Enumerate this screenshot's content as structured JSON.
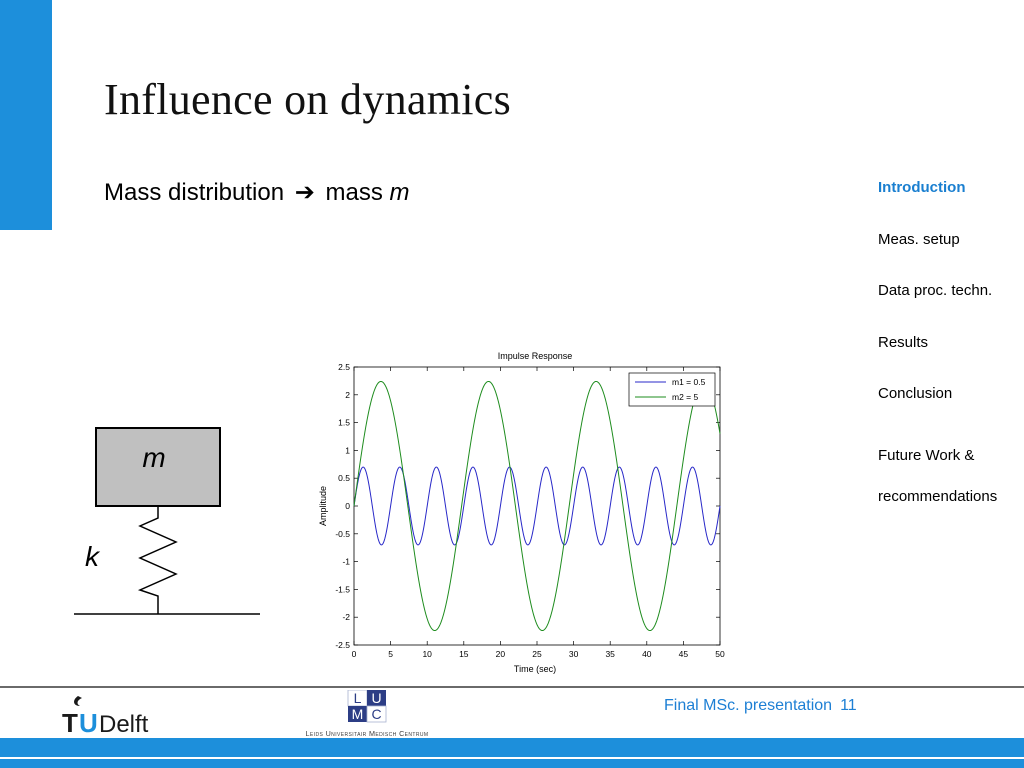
{
  "slide": {
    "title": "Influence on dynamics",
    "subtitle_text": "Mass distribution",
    "subtitle_arrow": "➔",
    "subtitle_mass": "mass",
    "subtitle_var": "m"
  },
  "nav": {
    "items": [
      {
        "label": "Introduction",
        "active": true
      },
      {
        "label": "Meas. setup",
        "active": false
      },
      {
        "label": "Data proc. techn.",
        "active": false
      },
      {
        "label": "Results",
        "active": false
      },
      {
        "label": "Conclusion",
        "active": false
      },
      {
        "label": "Future Work &",
        "label2": "recommendations",
        "active": false
      }
    ]
  },
  "diagram": {
    "mass_label": "m",
    "spring_label": "k"
  },
  "footer": {
    "presentation": "Final MSc. presentation",
    "page": "11",
    "tud_t": "T",
    "tud_u": "U",
    "tud_delft": "Delft",
    "lumc_l": "L",
    "lumc_u": "U",
    "lumc_m": "M",
    "lumc_c": "C",
    "lumc_name": "Leids Universitair Medisch Centrum"
  },
  "colors": {
    "accent": "#1d8fdb",
    "series1": "#2828c8",
    "series2": "#1e8c1e"
  },
  "chart_data": {
    "type": "line",
    "title": "Impulse Response",
    "xlabel": "Time (sec)",
    "ylabel": "Amplitude",
    "xlim": [
      0,
      50
    ],
    "ylim": [
      -2.5,
      2.5
    ],
    "xticks": [
      0,
      5,
      10,
      15,
      20,
      25,
      30,
      35,
      40,
      45,
      50
    ],
    "yticks": [
      2.5,
      2,
      1.5,
      1,
      0.5,
      0,
      -0.5,
      -1,
      -1.5,
      -2,
      -2.5
    ],
    "grid": false,
    "legend_position": "top-right",
    "series": [
      {
        "name": "m1 = 0.5",
        "amplitude": 0.7,
        "period": 5.0
      },
      {
        "name": "m2 = 5",
        "amplitude": 2.24,
        "period": 14.7
      }
    ]
  }
}
